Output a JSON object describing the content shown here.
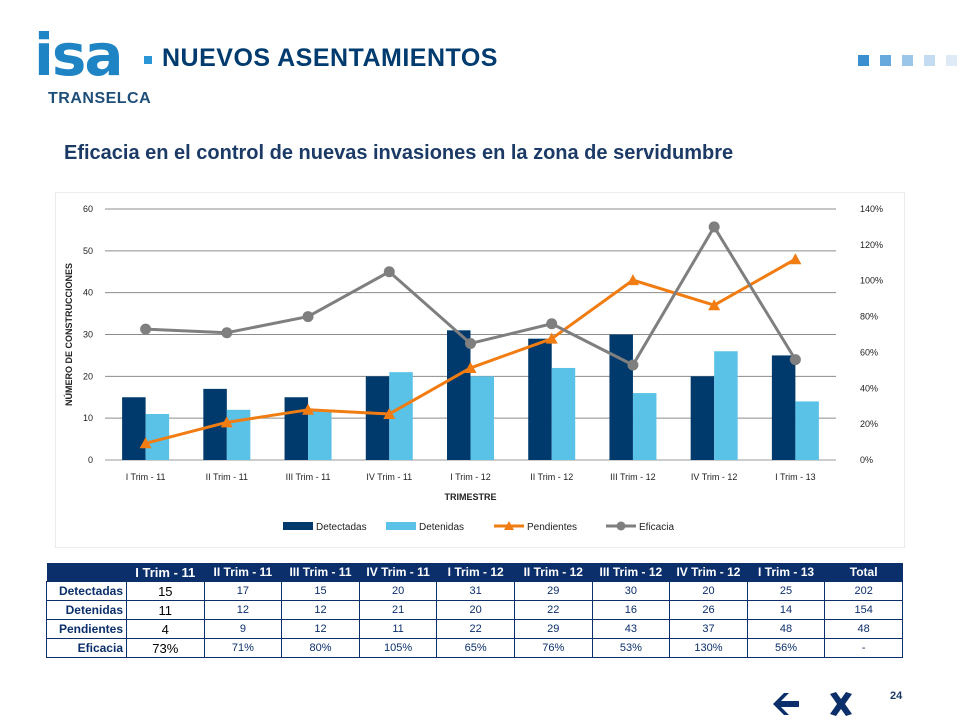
{
  "header": {
    "logo_text": "isa",
    "logo_sub": "TRANSELCA",
    "title": "NUEVOS ASENTAMIENTOS",
    "decor_colors": [
      "#3a8fd0",
      "#67a9dc",
      "#9ac6ea",
      "#c3dcf1",
      "#dfeaf7"
    ]
  },
  "subtitle": "Eficacia en el control de nuevas invasiones en la zona de servidumbre",
  "chart_data": {
    "type": "bar",
    "categories": [
      "I Trim - 11",
      "II Trim - 11",
      "III Trim - 11",
      "IV Trim - 11",
      "I Trim - 12",
      "II Trim - 12",
      "III Trim - 12",
      "IV Trim - 12",
      "I Trim - 13"
    ],
    "series": [
      {
        "name": "Detectadas",
        "type": "bar",
        "axis": "left",
        "color": "#003a6c",
        "values": [
          15,
          17,
          15,
          20,
          31,
          29,
          30,
          20,
          25
        ]
      },
      {
        "name": "Detenidas",
        "type": "bar",
        "axis": "left",
        "color": "#5bc2e7",
        "values": [
          11,
          12,
          12,
          21,
          20,
          22,
          16,
          26,
          14
        ]
      },
      {
        "name": "Pendientes",
        "type": "line",
        "axis": "left",
        "color": "#f07c12",
        "marker": "triangle",
        "values": [
          4,
          9,
          12,
          11,
          22,
          29,
          43,
          37,
          48
        ]
      },
      {
        "name": "Eficacia",
        "type": "line",
        "axis": "right",
        "color": "#7f7f7f",
        "marker": "circle",
        "values": [
          0.73,
          0.71,
          0.8,
          1.05,
          0.65,
          0.76,
          0.53,
          1.3,
          0.56
        ]
      }
    ],
    "ylim": [
      0,
      60
    ],
    "yticks": [
      "0",
      "10",
      "20",
      "30",
      "40",
      "50",
      "60"
    ],
    "y2lim": [
      0,
      1.4
    ],
    "y2ticks": [
      "0%",
      "20%",
      "40%",
      "60%",
      "80%",
      "100%",
      "120%",
      "140%"
    ],
    "xlabel": "TRIMESTRE",
    "ylabel": "NÚMERO DE CONSTRUCCIONES",
    "legend_position": "bottom",
    "grid": true
  },
  "table": {
    "headers": [
      "I Trim - 11",
      "II Trim - 11",
      "III Trim - 11",
      "IV Trim - 11",
      "I Trim - 12",
      "II Trim - 12",
      "III Trim - 12",
      "IV Trim - 12",
      "I Trim - 13",
      "Total"
    ],
    "rows": [
      {
        "label": "Detectadas",
        "cells": [
          "15",
          "17",
          "15",
          "20",
          "31",
          "29",
          "30",
          "20",
          "25",
          "202"
        ]
      },
      {
        "label": "Detenidas",
        "cells": [
          "11",
          "12",
          "12",
          "21",
          "20",
          "22",
          "16",
          "26",
          "14",
          "154"
        ]
      },
      {
        "label": "Pendientes",
        "cells": [
          "4",
          "9",
          "12",
          "11",
          "22",
          "29",
          "43",
          "37",
          "48",
          "48"
        ]
      },
      {
        "label": "Eficacia",
        "cells": [
          "73%",
          "71%",
          "80%",
          "105%",
          "65%",
          "76%",
          "53%",
          "130%",
          "56%",
          "-"
        ]
      }
    ]
  },
  "page_number": "24",
  "nav": {
    "back_icon": "arrow-left-icon",
    "close_icon": "close-x-icon",
    "color": "#0b2f6b"
  }
}
